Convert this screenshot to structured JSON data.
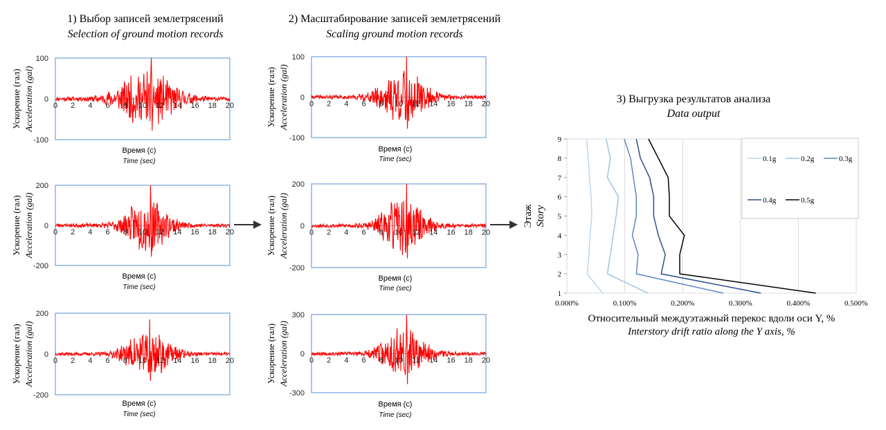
{
  "headings": {
    "step1": {
      "ru": "1) Выбор записей землетрясений",
      "en": "Selection of ground motion records"
    },
    "step2": {
      "ru": "2) Масштабирование записей землетрясений",
      "en": "Scaling ground motion records"
    },
    "step3": {
      "ru": "3) Выгрузка результатов анализа",
      "en": "Data output"
    }
  },
  "axis_text": {
    "ylabel_ru": "Ускорение (гал)",
    "ylabel_en": "Acceleration (gal)",
    "xlabel_ru": "Время (с)",
    "xlabel_en": "Time (sec)"
  },
  "colors": {
    "signal": "#ff0000",
    "frame": "#8db4e2",
    "arrow": "#333333"
  },
  "icons": [
    "arrow-right-icon",
    "arrow-right-icon"
  ],
  "chart_data": [
    {
      "type": "line",
      "id": "c1",
      "x_ticks": [
        "0",
        "2",
        "4",
        "6",
        "8",
        "10",
        "12",
        "14",
        "16",
        "18",
        "20"
      ],
      "y_ticks": [
        "100",
        "0",
        "-100"
      ],
      "xlim": [
        0,
        20
      ],
      "ylim": [
        -100,
        100
      ],
      "peak": 100,
      "series": [
        {
          "values": []
        }
      ]
    },
    {
      "type": "line",
      "id": "c2",
      "x_ticks": [
        "0",
        "2",
        "4",
        "6",
        "8",
        "10",
        "12",
        "14",
        "16",
        "18",
        "20"
      ],
      "y_ticks": [
        "200",
        "0",
        "-200"
      ],
      "xlim": [
        0,
        20
      ],
      "ylim": [
        -200,
        200
      ],
      "peak": 200,
      "series": [
        {
          "values": []
        }
      ]
    },
    {
      "type": "line",
      "id": "c3",
      "x_ticks": [
        "0",
        "2",
        "4",
        "6",
        "8",
        "10",
        "12",
        "14",
        "16",
        "18",
        "20"
      ],
      "y_ticks": [
        "200",
        "0",
        "-200"
      ],
      "xlim": [
        0,
        20
      ],
      "ylim": [
        -200,
        200
      ],
      "peak": 170,
      "series": [
        {
          "values": []
        }
      ]
    },
    {
      "type": "line",
      "id": "c4",
      "x_ticks": [
        "0",
        "2",
        "4",
        "6",
        "8",
        "10",
        "12",
        "14",
        "16",
        "18",
        "20"
      ],
      "y_ticks": [
        "100",
        "0",
        "-100"
      ],
      "xlim": [
        0,
        20
      ],
      "ylim": [
        -100,
        100
      ],
      "peak": 100,
      "series": [
        {
          "values": []
        }
      ]
    },
    {
      "type": "line",
      "id": "c5",
      "x_ticks": [
        "0",
        "2",
        "4",
        "6",
        "8",
        "10",
        "12",
        "14",
        "16",
        "18",
        "20"
      ],
      "y_ticks": [
        "200",
        "0",
        "-200"
      ],
      "xlim": [
        0,
        20
      ],
      "ylim": [
        -200,
        200
      ],
      "peak": 200,
      "series": [
        {
          "values": []
        }
      ]
    },
    {
      "type": "line",
      "id": "c6",
      "x_ticks": [
        "0",
        "2",
        "4",
        "6",
        "8",
        "10",
        "12",
        "14",
        "16",
        "18",
        "20"
      ],
      "y_ticks": [
        "300",
        "0",
        "-300"
      ],
      "xlim": [
        0,
        20
      ],
      "ylim": [
        -300,
        300
      ],
      "peak": 300,
      "series": [
        {
          "values": []
        }
      ]
    },
    {
      "type": "line",
      "id": "drift",
      "xlabel_ru": "Относительный междуэтажный перекос вдоли оси Y, %",
      "xlabel_en": "Interstory drift ratio along the Y axis, %",
      "ylabel_ru": "Этаж",
      "ylabel_en": "Story",
      "x_ticks": [
        "0.000%",
        "0.100%",
        "0.200%",
        "0.300%",
        "0.400%",
        "0.500%"
      ],
      "y_ticks": [
        "1",
        "2",
        "3",
        "4",
        "5",
        "6",
        "7",
        "8",
        "9"
      ],
      "xlim": [
        0,
        0.5
      ],
      "ylim": [
        1,
        9
      ],
      "grid": true,
      "legend": "top-right",
      "stories": [
        1,
        2,
        3,
        4,
        5,
        6,
        7,
        8,
        9
      ],
      "series": [
        {
          "name": "0.1g",
          "color": "#bdd7ee",
          "values": [
            0.062,
            0.035,
            0.038,
            0.04,
            0.043,
            0.042,
            0.039,
            0.037,
            0.034
          ]
        },
        {
          "name": "0.2g",
          "color": "#9dc3e6",
          "values": [
            0.14,
            0.07,
            0.075,
            0.08,
            0.085,
            0.089,
            0.07,
            0.075,
            0.068
          ]
        },
        {
          "name": "0.3g",
          "color": "#5b87c5",
          "values": [
            0.27,
            0.12,
            0.123,
            0.113,
            0.12,
            0.12,
            0.115,
            0.11,
            0.099
          ]
        },
        {
          "name": "0.4g",
          "color": "#2e4d8a",
          "values": [
            0.335,
            0.163,
            0.17,
            0.158,
            0.15,
            0.15,
            0.143,
            0.127,
            0.12
          ]
        },
        {
          "name": "0.5g",
          "color": "#000000",
          "values": [
            0.43,
            0.195,
            0.195,
            0.203,
            0.177,
            0.177,
            0.175,
            0.158,
            0.141
          ]
        }
      ]
    }
  ]
}
